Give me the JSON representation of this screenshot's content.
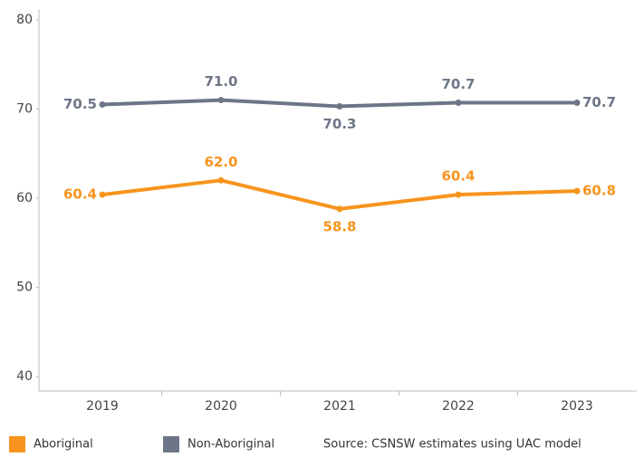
{
  "chart_data": {
    "type": "line",
    "categories": [
      "2019",
      "2020",
      "2021",
      "2022",
      "2023"
    ],
    "series": [
      {
        "name": "Aboriginal",
        "color": "#f7941d",
        "values": [
          60.4,
          62.0,
          58.8,
          60.4,
          60.8
        ],
        "value_labels": [
          "60.4",
          "62.0",
          "58.8",
          "60.4",
          "60.8"
        ]
      },
      {
        "name": "Non-Aboriginal",
        "color": "#6d7687",
        "values": [
          70.5,
          71.0,
          70.3,
          70.7,
          70.7
        ],
        "value_labels": [
          "70.5",
          "71.0",
          "70.3",
          "70.7",
          "70.7"
        ]
      }
    ],
    "ylim": [
      38.4,
      81.2
    ],
    "yticks": [
      40,
      50,
      60,
      70,
      80
    ],
    "annotation": "Source: CSNSW estimates using UAC model"
  }
}
